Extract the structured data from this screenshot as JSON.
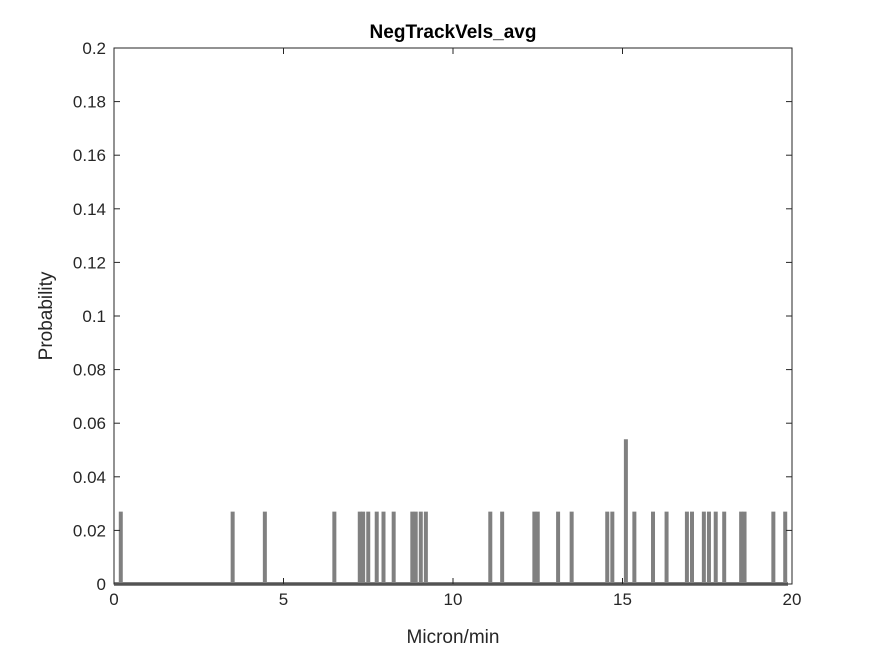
{
  "chart_data": {
    "type": "line",
    "title": "NegTrackVels_avg",
    "xlabel": "Micron/min",
    "ylabel": "Probability",
    "xlim": [
      0,
      20
    ],
    "ylim": [
      0,
      0.2
    ],
    "x_ticks": [
      0,
      5,
      10,
      15,
      20
    ],
    "y_ticks": [
      0,
      0.02,
      0.04,
      0.06,
      0.08,
      0.1,
      0.12,
      0.14,
      0.16,
      0.18,
      0.2
    ],
    "grid": false,
    "line_color": "#808080",
    "series": [
      {
        "x": [
          0.2,
          3.5,
          4.45,
          6.5,
          7.25,
          7.35,
          7.5,
          7.75,
          7.95,
          8.25,
          8.8,
          8.9,
          9.05,
          9.2,
          11.1,
          11.45,
          12.4,
          12.5,
          13.1,
          13.5,
          14.55,
          14.7,
          15.1,
          15.35,
          15.9,
          16.3,
          16.9,
          17.05,
          17.4,
          17.55,
          17.75,
          18.0,
          18.5,
          18.6,
          19.45,
          19.8
        ],
        "y": [
          0.027,
          0.027,
          0.027,
          0.027,
          0.027,
          0.027,
          0.027,
          0.027,
          0.027,
          0.027,
          0.027,
          0.027,
          0.027,
          0.027,
          0.027,
          0.027,
          0.027,
          0.027,
          0.027,
          0.027,
          0.027,
          0.027,
          0.054,
          0.027,
          0.027,
          0.027,
          0.027,
          0.027,
          0.027,
          0.027,
          0.027,
          0.027,
          0.027,
          0.027,
          0.027,
          0.027
        ]
      }
    ]
  }
}
